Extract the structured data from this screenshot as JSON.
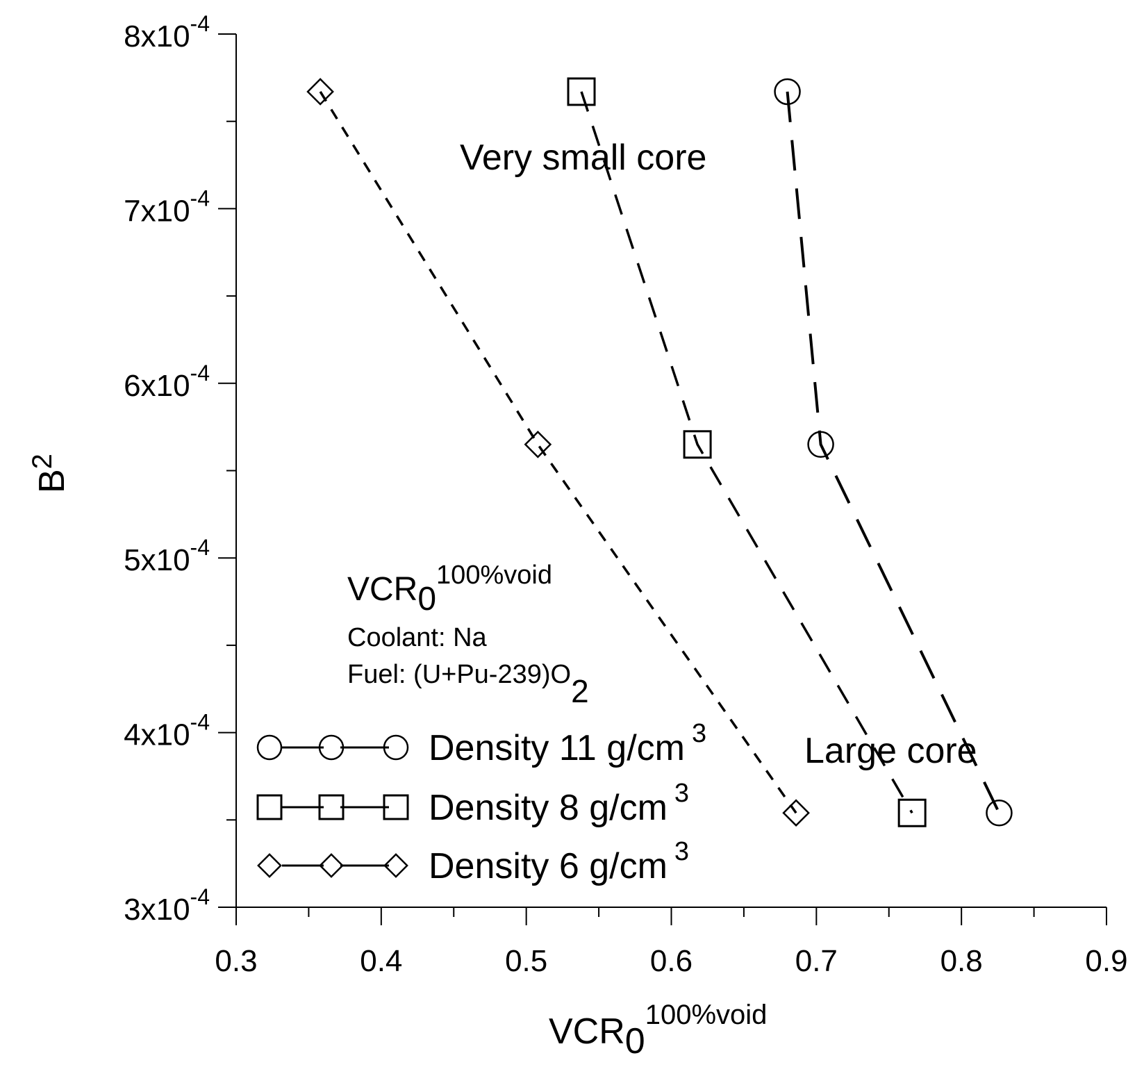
{
  "chart_data": {
    "type": "line",
    "title": "",
    "xlabel": {
      "main": "VCR",
      "sub": "0",
      "sup": "100%void"
    },
    "ylabel": {
      "main": "B",
      "sup": "2"
    },
    "xlim": [
      0.3,
      0.9
    ],
    "ylim": [
      0.0003,
      0.0008
    ],
    "x_ticks": [
      "0.3",
      "0.4",
      "0.5",
      "0.6",
      "0.7",
      "0.8",
      "0.9"
    ],
    "x_tick_values": [
      0.3,
      0.4,
      0.5,
      0.6,
      0.7,
      0.8,
      0.9
    ],
    "y_ticks": [
      {
        "value": 0.0008,
        "base": "8x10",
        "exp": "-4"
      },
      {
        "value": 0.0007,
        "base": "7x10",
        "exp": "-4"
      },
      {
        "value": 0.0006,
        "base": "6x10",
        "exp": "-4"
      },
      {
        "value": 0.0005,
        "base": "5x10",
        "exp": "-4"
      },
      {
        "value": 0.0004,
        "base": "4x10",
        "exp": "-4"
      },
      {
        "value": 0.0003,
        "base": "3x10",
        "exp": "-4"
      }
    ],
    "grid": false,
    "legend_position": "bottom-left",
    "series": [
      {
        "name": "Density 11 g/cm",
        "sup": "3",
        "marker": "circle",
        "dash": "long",
        "x": [
          0.68,
          0.703,
          0.826
        ],
        "y": [
          0.000767,
          0.000565,
          0.000354
        ]
      },
      {
        "name": "Density 8 g/cm",
        "sup": "3",
        "marker": "square",
        "dash": "medium",
        "x": [
          0.538,
          0.618,
          0.766
        ],
        "y": [
          0.000767,
          0.000565,
          0.000354
        ]
      },
      {
        "name": "Density 6 g/cm",
        "sup": "3",
        "marker": "diamond",
        "dash": "short",
        "x": [
          0.358,
          0.508,
          0.686
        ],
        "y": [
          0.000767,
          0.000565,
          0.000354
        ]
      }
    ],
    "annotations": {
      "very_small": "Very small core",
      "large": "Large core",
      "info_title": {
        "main": "VCR",
        "sub": "0",
        "sup": "100%void"
      },
      "coolant": "Coolant: Na",
      "fuel": "Fuel: (U+Pu-239)O",
      "fuel_sub": "2"
    }
  }
}
